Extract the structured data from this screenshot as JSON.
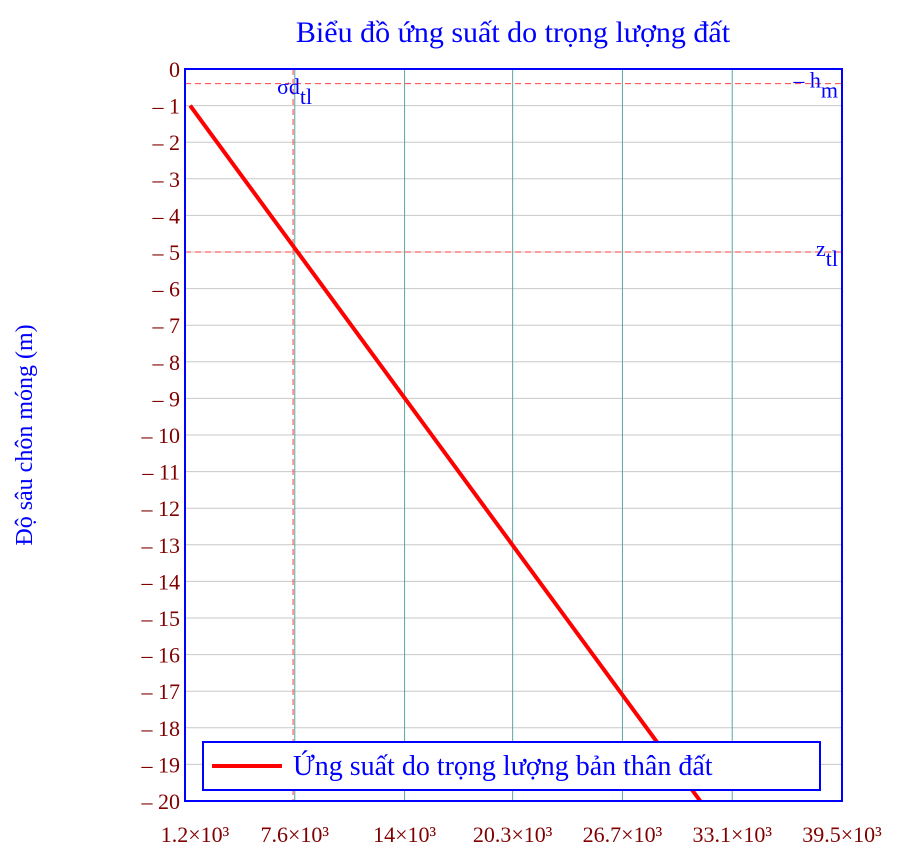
{
  "chart_data": {
    "type": "line",
    "title": "Biểu đồ ứng suất do trọng lượng đất",
    "y_label": "Độ sâu chôn móng (m)",
    "xlim": [
      1200,
      39500
    ],
    "ylim": [
      -20,
      0
    ],
    "xticks": [
      {
        "value": 1200,
        "label": "1.2×10³"
      },
      {
        "value": 7600,
        "label": "7.6×10³"
      },
      {
        "value": 14000,
        "label": "14×10³"
      },
      {
        "value": 20300,
        "label": "20.3×10³"
      },
      {
        "value": 26700,
        "label": "26.7×10³"
      },
      {
        "value": 33100,
        "label": "33.1×10³"
      },
      {
        "value": 39500,
        "label": "39.5×10³"
      }
    ],
    "yticks": [
      0,
      {
        "value": -1,
        "label": "– 1"
      },
      {
        "value": -2,
        "label": "– 2"
      },
      {
        "value": -3,
        "label": "– 3"
      },
      {
        "value": -4,
        "label": "– 4"
      },
      {
        "value": -5,
        "label": "– 5"
      },
      {
        "value": -6,
        "label": "– 6"
      },
      {
        "value": -7,
        "label": "– 7"
      },
      {
        "value": -8,
        "label": "– 8"
      },
      {
        "value": -9,
        "label": "– 9"
      },
      {
        "value": -10,
        "label": "– 10"
      },
      {
        "value": -11,
        "label": "– 11"
      },
      {
        "value": -12,
        "label": "– 12"
      },
      {
        "value": -13,
        "label": "– 13"
      },
      {
        "value": -14,
        "label": "– 14"
      },
      {
        "value": -15,
        "label": "– 15"
      },
      {
        "value": -16,
        "label": "– 16"
      },
      {
        "value": -17,
        "label": "– 17"
      },
      {
        "value": -18,
        "label": "– 18"
      },
      {
        "value": -19,
        "label": "– 19"
      },
      {
        "value": -20,
        "label": "– 20"
      }
    ],
    "grid": true,
    "legend": "lower",
    "series": [
      {
        "name": "Ứng suất do trọng lượng bản thân đất",
        "color": "#ff0000",
        "x": [
          1500,
          3065,
          4630,
          6195,
          7760,
          9325,
          10890,
          12455,
          14020,
          15585,
          17150,
          18715,
          20280,
          21845,
          23410,
          24975,
          26540,
          28105,
          29670,
          31235
        ],
        "values": [
          -1,
          -2,
          -3,
          -4,
          -5,
          -6,
          -7,
          -8,
          -9,
          -10,
          -11,
          -12,
          -13,
          -14,
          -15,
          -16,
          -17,
          -18,
          -19,
          -20
        ]
      }
    ],
    "hlines": [
      {
        "value": -0.4,
        "label": "– h",
        "sub": "m"
      },
      {
        "value": -5,
        "label": "z",
        "sub": "tl"
      }
    ],
    "vlines": [
      {
        "value": 7500,
        "label": "σd",
        "sub": "tl"
      }
    ]
  }
}
